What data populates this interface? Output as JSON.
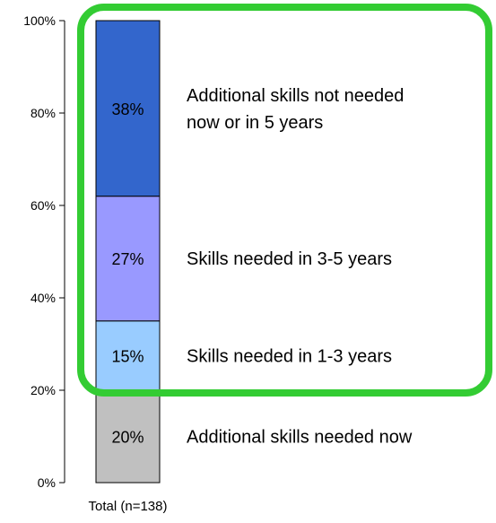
{
  "chart_data": {
    "type": "bar",
    "stacked": true,
    "categories": [
      "Total (n=138)"
    ],
    "series": [
      {
        "name": "Additional skills needed now",
        "values": [
          20
        ],
        "label": "20%",
        "color": "#c0c0c0"
      },
      {
        "name": "Skills needed in 1-3 years",
        "values": [
          15
        ],
        "label": "15%",
        "color": "#99ccff"
      },
      {
        "name": "Skills needed in 3-5 years",
        "values": [
          27
        ],
        "label": "27%",
        "color": "#9999ff"
      },
      {
        "name": "Additional skills not needed now or in 5 years",
        "values": [
          38
        ],
        "label": "38%",
        "color": "#3366cc"
      }
    ],
    "annotations": [
      {
        "series": 3,
        "lines": [
          "Additional skills not needed",
          "now or in 5 years"
        ]
      },
      {
        "series": 2,
        "lines": [
          "Skills needed in 3-5 years"
        ]
      },
      {
        "series": 1,
        "lines": [
          "Skills needed in 1-3 years"
        ]
      },
      {
        "series": 0,
        "lines": [
          "Additional skills needed now"
        ]
      }
    ],
    "yticks": [
      "0%",
      "20%",
      "40%",
      "60%",
      "80%",
      "100%"
    ],
    "ytick_values": [
      0,
      20,
      40,
      60,
      80,
      100
    ],
    "ylim": [
      0,
      100
    ],
    "highlight": {
      "series_from": 1,
      "series_to": 3,
      "color": "#33cc33"
    },
    "title": "",
    "xlabel": "",
    "ylabel": ""
  }
}
